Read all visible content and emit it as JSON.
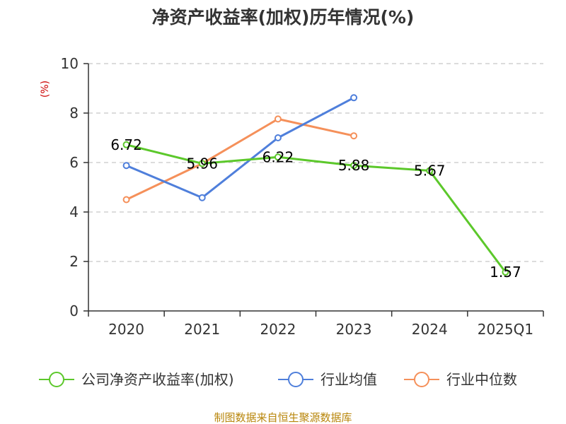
{
  "chart_data": {
    "type": "line",
    "title": "净资产收益率(加权)历年情况(%)",
    "ylabel": "(%)",
    "xlabel": "",
    "categories": [
      "2020",
      "2021",
      "2022",
      "2023",
      "2024",
      "2025Q1"
    ],
    "ylim": [
      0,
      10
    ],
    "yticks": [
      0,
      2,
      4,
      6,
      8,
      10
    ],
    "grid": true,
    "legend_position": "bottom",
    "series": [
      {
        "name": "公司净资产收益率(加权)",
        "color": "#5cc82b",
        "values": [
          6.72,
          5.96,
          6.22,
          5.88,
          5.67,
          1.57
        ],
        "labels": [
          "6.72",
          "5.96",
          "6.22",
          "5.88",
          "5.67",
          "1.57"
        ]
      },
      {
        "name": "行业均值",
        "color": "#4f7fdb",
        "values": [
          5.88,
          4.58,
          7.0,
          8.62,
          null,
          null
        ]
      },
      {
        "name": "行业中位数",
        "color": "#f5905a",
        "values": [
          4.5,
          5.96,
          7.76,
          7.08,
          null,
          null
        ]
      }
    ]
  },
  "footer": {
    "source": "制图数据来自恒生聚源数据库"
  }
}
